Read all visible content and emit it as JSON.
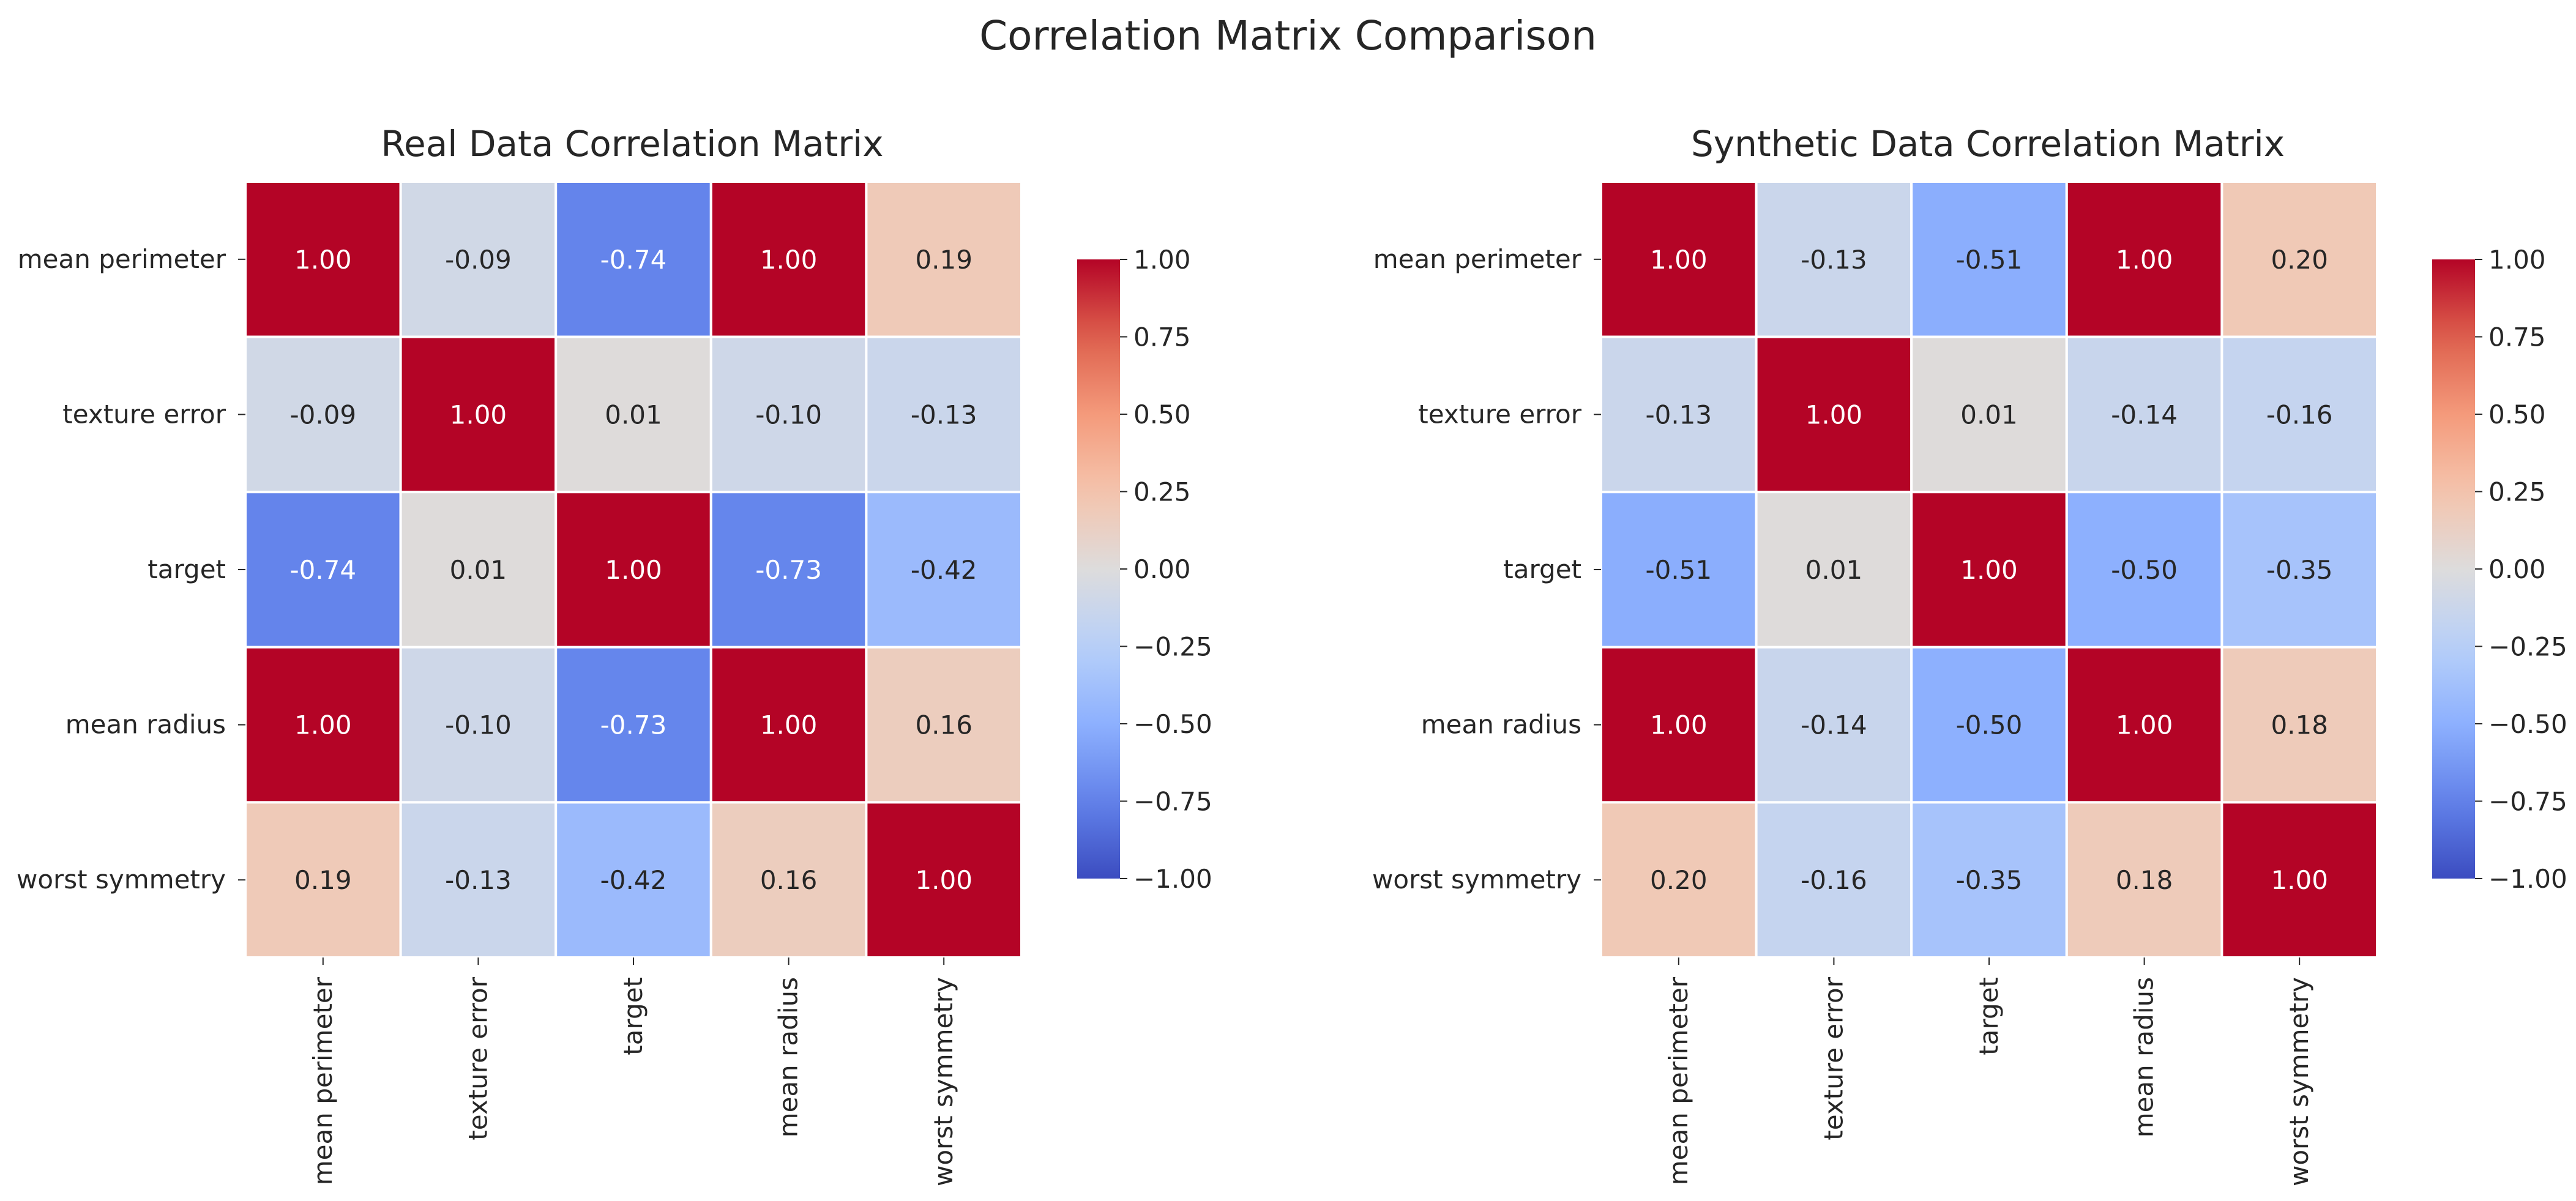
{
  "title": "Correlation Matrix Comparison",
  "chart_data": [
    {
      "type": "heatmap",
      "title": "Real Data Correlation Matrix",
      "rows": [
        "mean perimeter",
        "texture error",
        "target",
        "mean radius",
        "worst symmetry"
      ],
      "columns": [
        "mean perimeter",
        "texture error",
        "target",
        "mean radius",
        "worst symmetry"
      ],
      "values": [
        [
          1.0,
          -0.09,
          -0.74,
          1.0,
          0.19
        ],
        [
          -0.09,
          1.0,
          0.01,
          -0.1,
          -0.13
        ],
        [
          -0.74,
          0.01,
          1.0,
          -0.73,
          -0.42
        ],
        [
          1.0,
          -0.1,
          -0.73,
          1.0,
          0.16
        ],
        [
          0.19,
          -0.13,
          -0.42,
          0.16,
          1.0
        ]
      ],
      "colormap": "coolwarm",
      "vmin": -1.0,
      "vmax": 1.0,
      "colorbar_ticks": [
        "1.00",
        "0.75",
        "0.50",
        "0.25",
        "0.00",
        "−0.25",
        "−0.50",
        "−0.75",
        "−1.00"
      ]
    },
    {
      "type": "heatmap",
      "title": "Synthetic Data Correlation Matrix",
      "rows": [
        "mean perimeter",
        "texture error",
        "target",
        "mean radius",
        "worst symmetry"
      ],
      "columns": [
        "mean perimeter",
        "texture error",
        "target",
        "mean radius",
        "worst symmetry"
      ],
      "values": [
        [
          1.0,
          -0.13,
          -0.51,
          1.0,
          0.2
        ],
        [
          -0.13,
          1.0,
          0.01,
          -0.14,
          -0.16
        ],
        [
          -0.51,
          0.01,
          1.0,
          -0.5,
          -0.35
        ],
        [
          1.0,
          -0.14,
          -0.5,
          1.0,
          0.18
        ],
        [
          0.2,
          -0.16,
          -0.35,
          0.18,
          1.0
        ]
      ],
      "colormap": "coolwarm",
      "vmin": -1.0,
      "vmax": 1.0,
      "colorbar_ticks": [
        "1.00",
        "0.75",
        "0.50",
        "0.25",
        "0.00",
        "−0.25",
        "−0.50",
        "−0.75",
        "−1.00"
      ]
    }
  ]
}
